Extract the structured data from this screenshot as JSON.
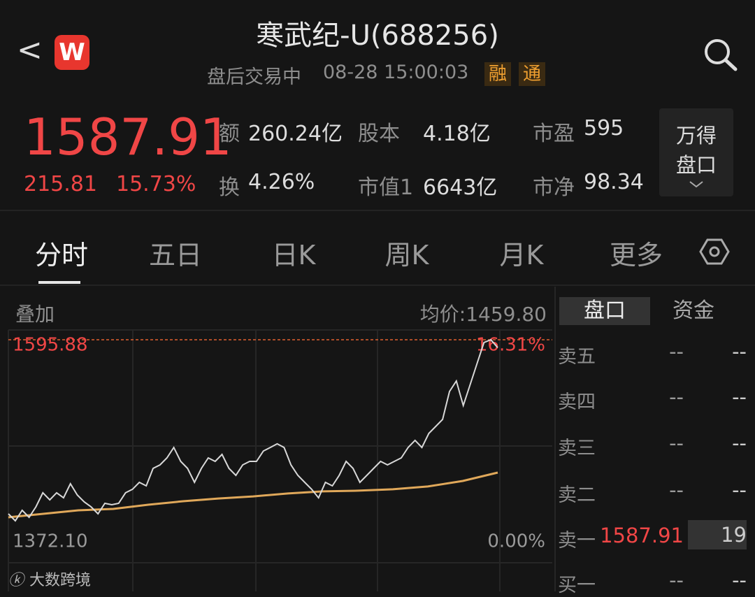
{
  "header": {
    "back": "<",
    "logo": "W",
    "title": "寒武纪-U(688256)",
    "status": "盘后交易中",
    "time": "08-28 15:00:03",
    "badges": [
      "融",
      "通"
    ]
  },
  "quote": {
    "price": "1587.91",
    "change": "215.81",
    "change_pct": "15.73%"
  },
  "stats": [
    {
      "label": "额",
      "value": "260.24亿"
    },
    {
      "label": "股本",
      "value": "4.18亿"
    },
    {
      "label": "市盈",
      "value": "595"
    },
    {
      "label": "换",
      "value": "4.26%"
    },
    {
      "label": "市值1",
      "value": "6643亿"
    },
    {
      "label": "市净",
      "value": "98.34"
    }
  ],
  "panel_button": [
    "万得",
    "盘口"
  ],
  "tabs": [
    "分时",
    "五日",
    "日K",
    "周K",
    "月K",
    "更多"
  ],
  "chart_data": {
    "type": "line",
    "overlay_label": "叠加",
    "avg_label": "均价:1459.80",
    "ylim": [
      1372.1,
      1595.88
    ],
    "yticks": [
      {
        "value": 1372.1,
        "label": "1372.10"
      },
      1595.88
    ],
    "y2lim": [
      0,
      16.31
    ],
    "y2ticks": [
      {
        "value": 0,
        "label": "0.00%"
      },
      {
        "value": 16.31,
        "label": "16.31%"
      }
    ],
    "series": [
      {
        "color": "#d8d8d8",
        "values": [
          1421.2,
          1414.2,
          1424.7,
          1417.7,
          1428.2,
          1442.3,
          1435.2,
          1442.3,
          1437.3,
          1451.4,
          1440.1,
          1433.1,
          1428.2,
          1421.2,
          1431.7,
          1430.3,
          1431.7,
          1442.3,
          1445.8,
          1452.8,
          1449.3,
          1466.8,
          1470.3,
          1477.3,
          1487.8,
          1473.8,
          1466.8,
          1452.8,
          1466.8,
          1477.3,
          1473.8,
          1480.8,
          1466.8,
          1459.8,
          1470.3,
          1473.8,
          1473.8,
          1484.3,
          1487.8,
          1491.4,
          1487.8,
          1470.3,
          1459.8,
          1452.8,
          1445.8,
          1437.3,
          1452.8,
          1449.3,
          1459.8,
          1473.8,
          1466.8,
          1452.8,
          1459.8,
          1466.8,
          1473.8,
          1470.3,
          1473.8,
          1477.3,
          1487.8,
          1494.9,
          1487.8,
          1501.9,
          1508.9,
          1515.9,
          1544.0,
          1554.5,
          1529.9,
          1551.0,
          1572.0,
          1593.1,
          1595.88,
          1587.91
        ]
      },
      {
        "color": "#e0a85a",
        "values": [
          1417.7,
          1421.2,
          1424.7,
          1426.1,
          1430.3,
          1433.8,
          1436.6,
          1438.7,
          1441.6,
          1443.7,
          1444.4,
          1445.8,
          1448.6,
          1454.2,
          1462.6
        ]
      }
    ]
  },
  "order_book": {
    "tabs": [
      "盘口",
      "资金"
    ],
    "rows": [
      [
        "卖五",
        "--",
        "--"
      ],
      [
        "卖四",
        "--",
        "--"
      ],
      [
        "卖三",
        "--",
        "--"
      ],
      [
        "卖二",
        "--",
        "--"
      ],
      [
        "卖一",
        "1587.91",
        "19"
      ],
      [
        "买一",
        "--",
        "--"
      ]
    ]
  },
  "watermark": "大数跨境"
}
